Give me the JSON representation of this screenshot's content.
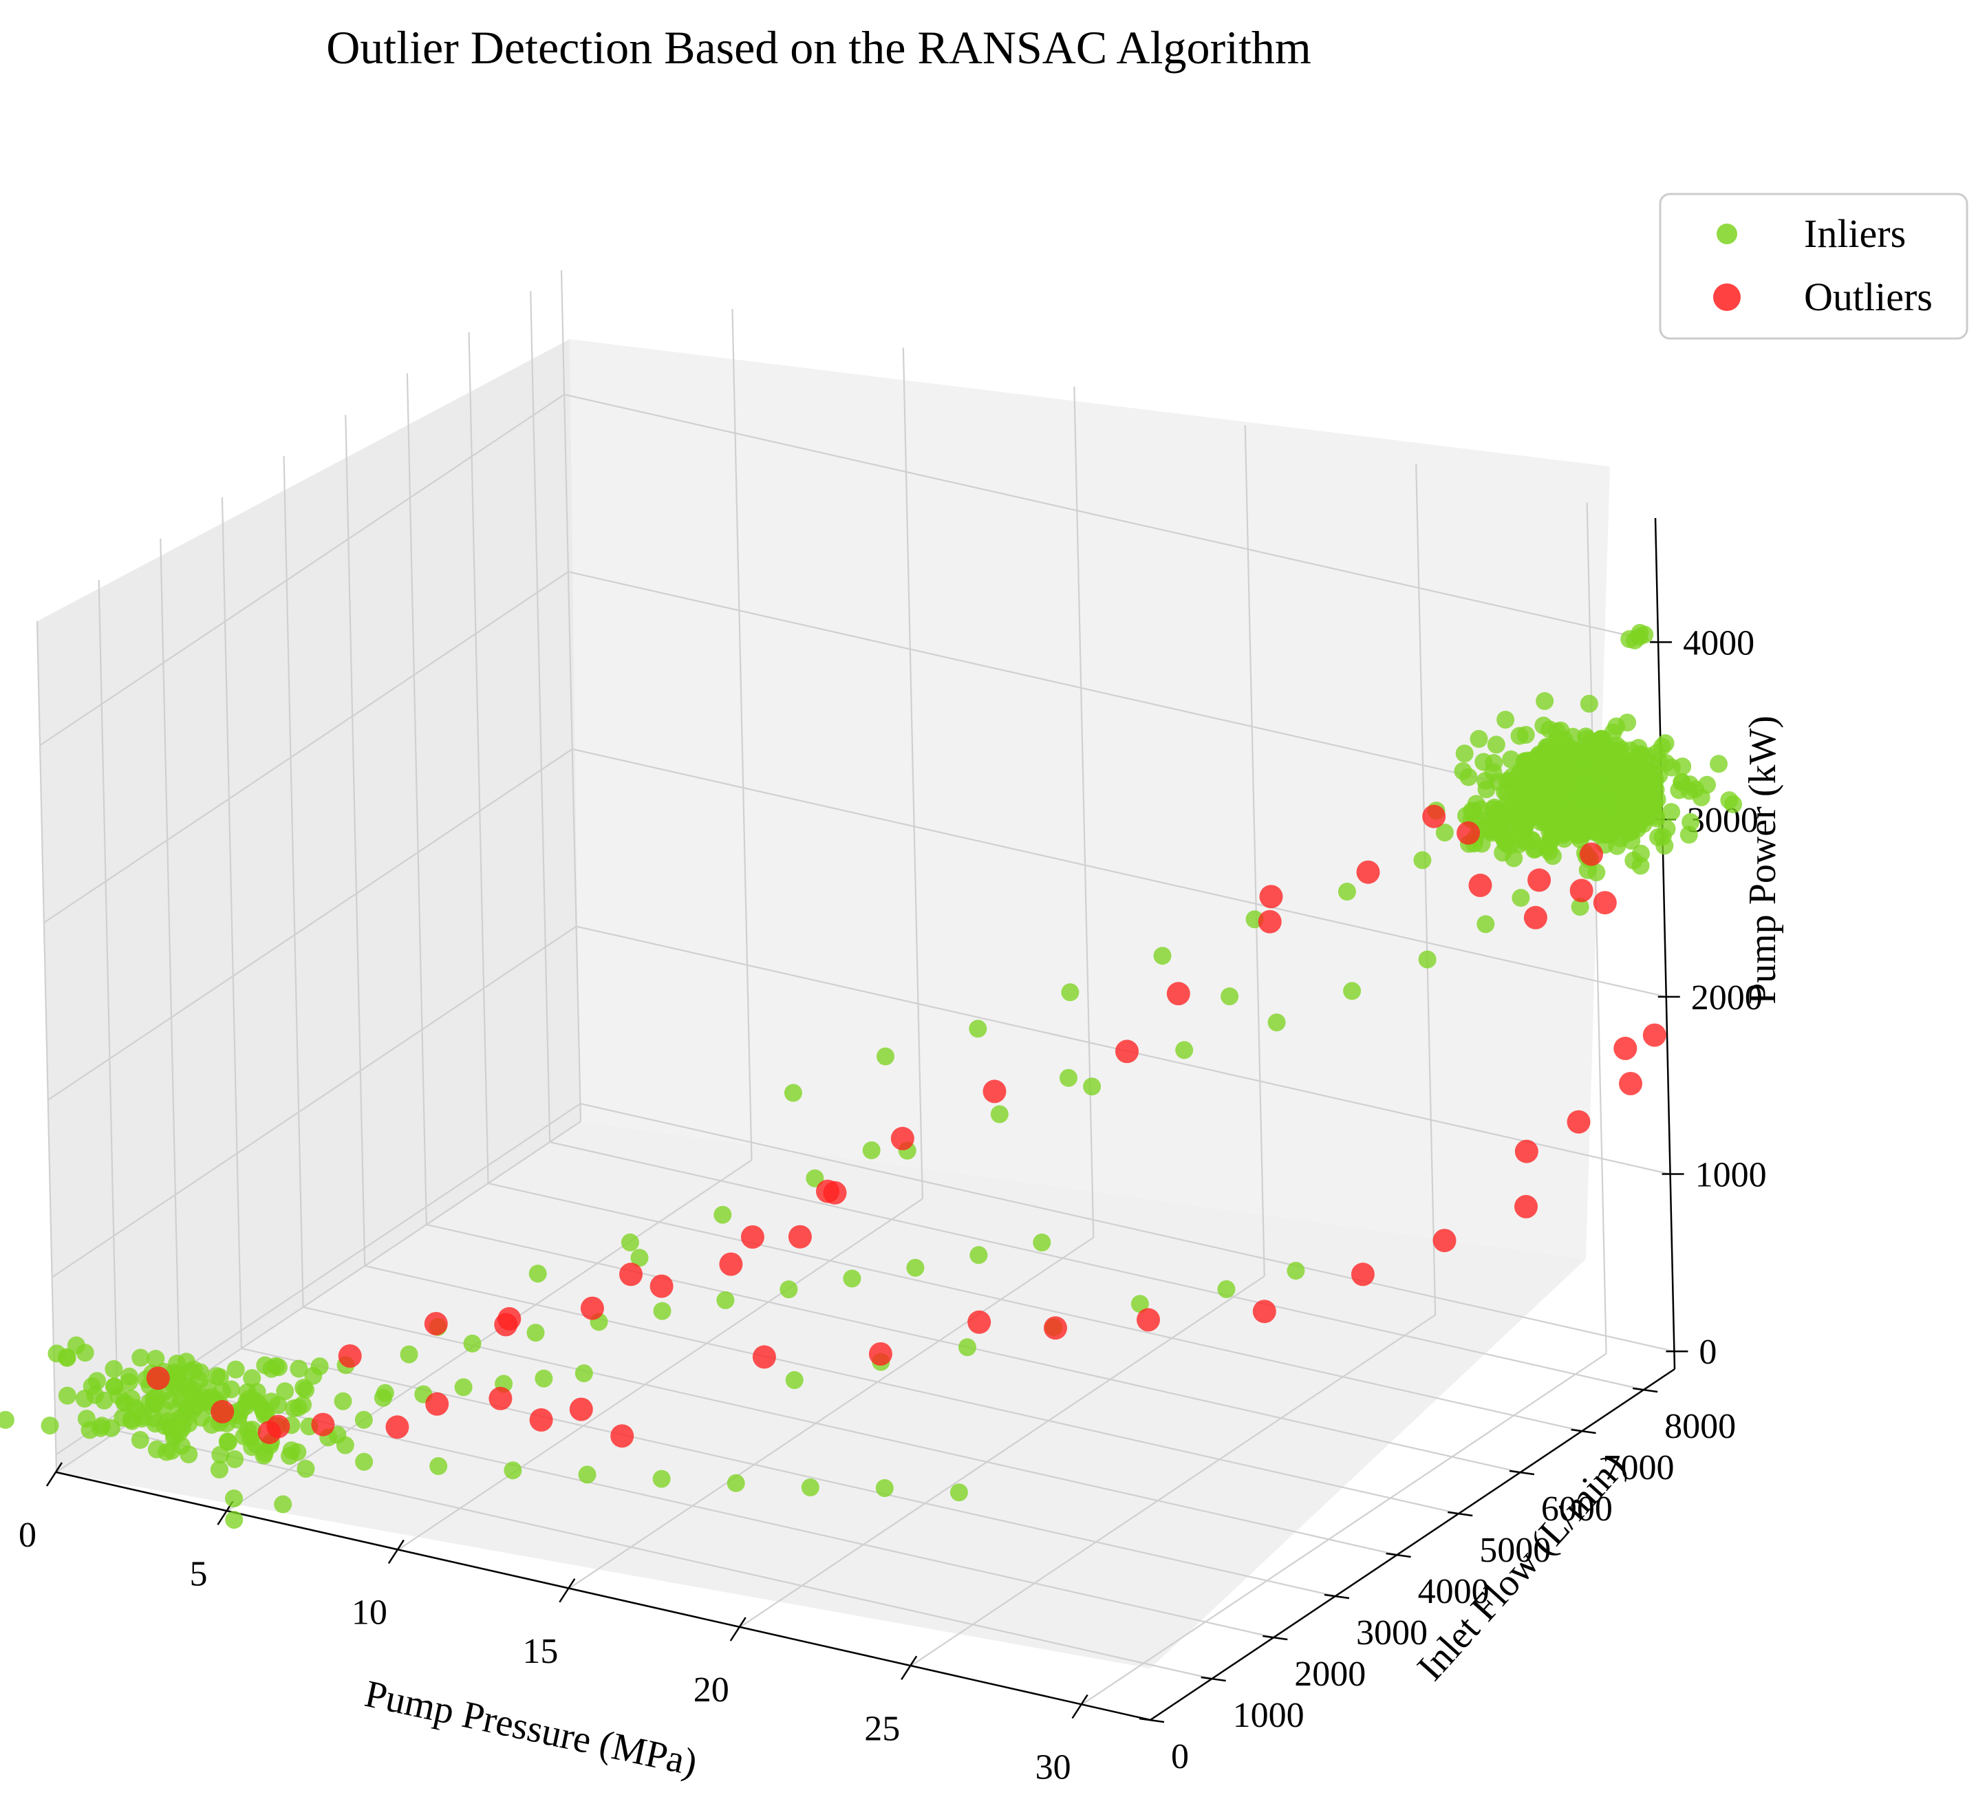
{
  "chart_data": {
    "type": "scatter3d",
    "title": "Outlier Detection Based on the RANSAC Algorithm",
    "xlabel": "Pump Pressure (MPa)",
    "ylabel": "Inlet Flow (L/min)",
    "zlabel": "Pump Power (kW)",
    "xlim": [
      0,
      32
    ],
    "ylim": [
      0,
      8500
    ],
    "zlim": [
      -100,
      4700
    ],
    "xticks": [
      "0",
      "5",
      "10",
      "15",
      "20",
      "25",
      "30"
    ],
    "yticks": [
      "0",
      "1000",
      "2000",
      "3000",
      "4000",
      "5000",
      "6000",
      "7000",
      "8000"
    ],
    "zticks": [
      "0",
      "1000",
      "2000",
      "3000",
      "4000"
    ],
    "grid": true,
    "legend_position": "top-right",
    "legend": [
      {
        "label": "Inliers",
        "color": "#7ed321"
      },
      {
        "label": "Outliers",
        "color": "#ff2020"
      }
    ],
    "series": [
      {
        "name": "Inliers",
        "color": "#7ed321",
        "clusters": [
          {
            "center": [
              30.8,
              7950,
              3250
            ],
            "spread": [
              1.1,
              280,
              120
            ],
            "count": 700
          },
          {
            "center": [
              29.0,
              7800,
              2980
            ],
            "spread": [
              0.9,
              200,
              60
            ],
            "count": 70
          },
          {
            "center": [
              3.0,
              600,
              280
            ],
            "spread": [
              1.8,
              350,
              110
            ],
            "count": 170
          }
        ],
        "points": [
          [
            1.0,
            200,
            160
          ],
          [
            2.0,
            300,
            220
          ],
          [
            3.0,
            400,
            250
          ],
          [
            4.0,
            500,
            300
          ],
          [
            5.0,
            600,
            340
          ],
          [
            6.0,
            700,
            380
          ],
          [
            7.0,
            800,
            420
          ],
          [
            8.0,
            900,
            460
          ],
          [
            9.0,
            1000,
            500
          ],
          [
            10.0,
            1100,
            560
          ],
          [
            11.0,
            1200,
            600
          ],
          [
            12.0,
            1300,
            650
          ],
          [
            13.0,
            1400,
            700
          ],
          [
            6.0,
            1400,
            440
          ],
          [
            7.5,
            1600,
            520
          ],
          [
            9.0,
            1800,
            600
          ],
          [
            10.5,
            2000,
            680
          ],
          [
            12.0,
            2200,
            760
          ],
          [
            13.5,
            2400,
            840
          ],
          [
            15.0,
            2600,
            920
          ],
          [
            16.5,
            2800,
            1000
          ],
          [
            18.0,
            3000,
            1080
          ],
          [
            19.5,
            3200,
            1160
          ],
          [
            21.0,
            3400,
            1250
          ],
          [
            22.5,
            3600,
            1340
          ],
          [
            9.5,
            2600,
            830
          ],
          [
            11.5,
            3000,
            1000
          ],
          [
            13.5,
            3400,
            1150
          ],
          [
            15.5,
            3800,
            1350
          ],
          [
            17.5,
            4200,
            1500
          ],
          [
            19.5,
            4600,
            1700
          ],
          [
            21.5,
            5000,
            1850
          ],
          [
            23.5,
            5400,
            2050
          ],
          [
            25.5,
            5800,
            2200
          ],
          [
            27.0,
            6200,
            2350
          ],
          [
            28.5,
            6600,
            2500
          ],
          [
            29.5,
            7000,
            2650
          ],
          [
            30.0,
            7300,
            2750
          ],
          [
            14.0,
            4300,
            1650
          ],
          [
            16.0,
            4700,
            1850
          ],
          [
            18.0,
            5100,
            2000
          ],
          [
            20.0,
            5500,
            2200
          ],
          [
            22.0,
            5900,
            2400
          ],
          [
            24.0,
            6300,
            2600
          ],
          [
            26.0,
            6700,
            2750
          ],
          [
            27.5,
            7100,
            2900
          ],
          [
            29.0,
            7400,
            3050
          ],
          [
            4.5,
            300,
            200
          ],
          [
            6.5,
            200,
            230
          ],
          [
            8.5,
            300,
            260
          ],
          [
            10.5,
            400,
            300
          ],
          [
            12.5,
            500,
            340
          ],
          [
            14.5,
            600,
            380
          ],
          [
            16.5,
            700,
            420
          ],
          [
            18.5,
            800,
            460
          ],
          [
            20.5,
            900,
            500
          ],
          [
            22.5,
            1000,
            560
          ],
          [
            24.5,
            1100,
            600
          ],
          [
            19.0,
            1500,
            900
          ],
          [
            21.0,
            1800,
            1020
          ],
          [
            23.0,
            2100,
            1120
          ],
          [
            25.0,
            2400,
            1250
          ],
          [
            27.0,
            2700,
            1400
          ],
          [
            29.0,
            3000,
            1500
          ],
          [
            30.5,
            3300,
            1600
          ],
          [
            8.0,
            1800,
            650
          ],
          [
            12.5,
            2600,
            1050
          ],
          [
            17.0,
            3900,
            1550
          ],
          [
            21.0,
            4900,
            1900
          ],
          [
            24.5,
            5600,
            2350
          ],
          [
            30.5,
            7000,
            3400
          ],
          [
            31.0,
            7700,
            2650
          ],
          [
            32.0,
            8200,
            4100
          ],
          [
            31.8,
            8150,
            4090
          ],
          [
            32.1,
            8230,
            4110
          ],
          [
            31.9,
            8180,
            4080
          ],
          [
            32.0,
            8210,
            4120
          ]
        ]
      },
      {
        "name": "Outliers",
        "color": "#ff2020",
        "points": [
          [
            2.5,
            300,
            470
          ],
          [
            4.0,
            500,
            300
          ],
          [
            5.0,
            700,
            180
          ],
          [
            6.0,
            300,
            350
          ],
          [
            7.5,
            200,
            450
          ],
          [
            9.5,
            300,
            500
          ],
          [
            10.5,
            400,
            650
          ],
          [
            12.0,
            600,
            700
          ],
          [
            13.0,
            700,
            600
          ],
          [
            14.0,
            800,
            680
          ],
          [
            15.0,
            900,
            550
          ],
          [
            6.5,
            1200,
            560
          ],
          [
            8.5,
            1500,
            760
          ],
          [
            10.0,
            1800,
            750
          ],
          [
            12.0,
            2100,
            860
          ],
          [
            13.5,
            2400,
            980
          ],
          [
            15.0,
            2700,
            1100
          ],
          [
            16.5,
            3000,
            1250
          ],
          [
            17.0,
            3300,
            1450
          ],
          [
            9.0,
            2400,
            600
          ],
          [
            11.5,
            3000,
            820
          ],
          [
            14.0,
            3600,
            1000
          ],
          [
            15.5,
            4000,
            1230
          ],
          [
            17.0,
            4400,
            1500
          ],
          [
            19.0,
            4800,
            1760
          ],
          [
            22.0,
            5300,
            2000
          ],
          [
            23.0,
            5600,
            2300
          ],
          [
            25.0,
            6000,
            2700
          ],
          [
            24.5,
            6300,
            2750
          ],
          [
            15.0,
            3200,
            460
          ],
          [
            17.5,
            3700,
            470
          ],
          [
            19.5,
            4200,
            620
          ],
          [
            21.0,
            4600,
            560
          ],
          [
            23.0,
            5000,
            600
          ],
          [
            25.5,
            5500,
            640
          ],
          [
            27.5,
            6000,
            820
          ],
          [
            29.0,
            6500,
            960
          ],
          [
            30.5,
            7000,
            1100
          ],
          [
            30.0,
            7300,
            1320
          ],
          [
            31.0,
            7600,
            1460
          ],
          [
            32.0,
            7900,
            1650
          ],
          [
            31.5,
            8100,
            1780
          ],
          [
            32.0,
            8300,
            1830
          ],
          [
            27.0,
            6500,
            2950
          ],
          [
            29.0,
            7200,
            2800
          ],
          [
            30.0,
            7600,
            2780
          ],
          [
            31.0,
            7900,
            2900
          ],
          [
            29.5,
            7800,
            2500
          ],
          [
            30.5,
            8000,
            2650
          ],
          [
            31.0,
            8100,
            2580
          ],
          [
            27.5,
            7300,
            3100
          ],
          [
            28.5,
            7300,
            3050
          ]
        ]
      }
    ]
  }
}
